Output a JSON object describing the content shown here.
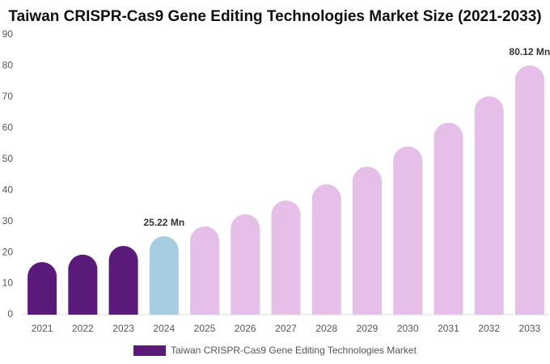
{
  "chart_data": {
    "type": "bar",
    "title": "Taiwan CRISPR-Cas9 Gene Editing Technologies Market Size (2021-2033)",
    "categories": [
      "2021",
      "2022",
      "2023",
      "2024",
      "2025",
      "2026",
      "2027",
      "2028",
      "2029",
      "2030",
      "2031",
      "2032",
      "2033"
    ],
    "series": [
      {
        "name": "Taiwan CRISPR-Cas9 Gene Editing Technologies Market",
        "color": "#5a1a7a",
        "values": [
          16.9,
          19.3,
          22.1,
          25.22,
          28.4,
          32.3,
          36.7,
          41.9,
          47.6,
          54.1,
          61.7,
          70.2,
          80.12
        ],
        "colors": [
          "#5a1a7a",
          "#5a1a7a",
          "#5a1a7a",
          "#a6cde0",
          "#e6bfe9",
          "#e6bfe9",
          "#e6bfe9",
          "#e6bfe9",
          "#e6bfe9",
          "#e6bfe9",
          "#e6bfe9",
          "#e6bfe9",
          "#e6bfe9"
        ],
        "value_labels": [
          null,
          null,
          null,
          "25.22 Mn",
          null,
          null,
          null,
          null,
          null,
          null,
          null,
          null,
          "80.12 Mn"
        ]
      }
    ],
    "ylim": [
      0,
      90
    ],
    "yticks": [
      0,
      10,
      20,
      30,
      40,
      50,
      60,
      70,
      80,
      90
    ],
    "grid": false
  }
}
